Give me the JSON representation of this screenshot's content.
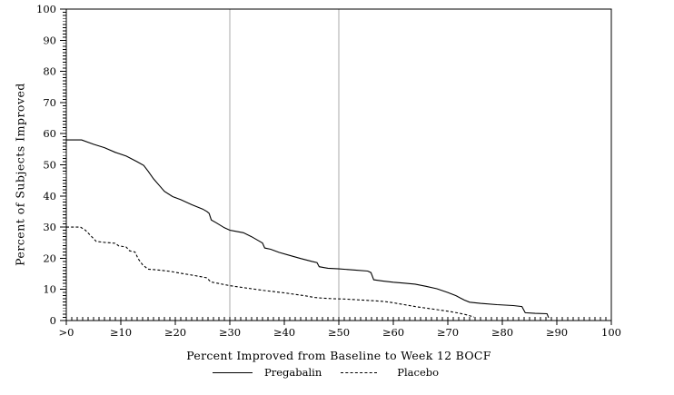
{
  "chart_data": {
    "type": "line",
    "title": "",
    "xlabel": "Percent Improved from Baseline to Week 12 BOCF",
    "ylabel": "Percent of Subjects Improved",
    "xlim": [
      0,
      100
    ],
    "ylim": [
      0,
      100
    ],
    "grid": false,
    "frame": true,
    "minor_tick_step": 1,
    "x_ticks": [
      {
        "v": 0,
        "label": ">0"
      },
      {
        "v": 10,
        "label": "≥10"
      },
      {
        "v": 20,
        "label": "≥20"
      },
      {
        "v": 30,
        "label": "≥30"
      },
      {
        "v": 40,
        "label": "≥40"
      },
      {
        "v": 50,
        "label": "≥50"
      },
      {
        "v": 60,
        "label": "≥60"
      },
      {
        "v": 70,
        "label": "≥70"
      },
      {
        "v": 80,
        "label": "≥80"
      },
      {
        "v": 90,
        "label": "≥90"
      },
      {
        "v": 100,
        "label": "100"
      }
    ],
    "y_ticks": [
      {
        "v": 0,
        "label": "0"
      },
      {
        "v": 10,
        "label": "10"
      },
      {
        "v": 20,
        "label": "20"
      },
      {
        "v": 30,
        "label": "30"
      },
      {
        "v": 40,
        "label": "40"
      },
      {
        "v": 50,
        "label": "50"
      },
      {
        "v": 60,
        "label": "60"
      },
      {
        "v": 70,
        "label": "70"
      },
      {
        "v": 80,
        "label": "80"
      },
      {
        "v": 90,
        "label": "90"
      },
      {
        "v": 100,
        "label": "100"
      }
    ],
    "reference_lines_x": [
      30,
      50
    ],
    "colors": {
      "series": "#000000",
      "frame": "#000000",
      "reference_line": "#a8a8a8",
      "background": "#ffffff"
    },
    "legend": {
      "position": "bottom",
      "entries": [
        {
          "name": "Pregabalin",
          "style": "solid"
        },
        {
          "name": "Placebo",
          "style": "dashed"
        }
      ]
    },
    "series": [
      {
        "name": "Pregabalin",
        "style": "solid",
        "points": [
          [
            0,
            58
          ],
          [
            2.8,
            58
          ],
          [
            5,
            56.6
          ],
          [
            7,
            55.5
          ],
          [
            9,
            54
          ],
          [
            11,
            52.8
          ],
          [
            13,
            51
          ],
          [
            14.2,
            49.8
          ],
          [
            15,
            48
          ],
          [
            16,
            45.5
          ],
          [
            17,
            43.5
          ],
          [
            18,
            41.5
          ],
          [
            19.5,
            39.8
          ],
          [
            21,
            38.8
          ],
          [
            23,
            37.2
          ],
          [
            25,
            35.8
          ],
          [
            25.8,
            35
          ],
          [
            26.2,
            34.4
          ],
          [
            26.6,
            32.3
          ],
          [
            27.5,
            31.4
          ],
          [
            29,
            29.8
          ],
          [
            30,
            29
          ],
          [
            31.5,
            28.5
          ],
          [
            32.5,
            28.2
          ],
          [
            34,
            26.9
          ],
          [
            35.3,
            25.6
          ],
          [
            36,
            24.9
          ],
          [
            36.4,
            23.3
          ],
          [
            37.5,
            22.9
          ],
          [
            39,
            21.9
          ],
          [
            41,
            20.9
          ],
          [
            43,
            19.9
          ],
          [
            45,
            19
          ],
          [
            46,
            18.6
          ],
          [
            46.4,
            17.3
          ],
          [
            48,
            16.8
          ],
          [
            50,
            16.6
          ],
          [
            53,
            16.2
          ],
          [
            55.3,
            15.9
          ],
          [
            55.9,
            15.4
          ],
          [
            56.4,
            13.1
          ],
          [
            58,
            12.7
          ],
          [
            60,
            12.3
          ],
          [
            62,
            12
          ],
          [
            64,
            11.7
          ],
          [
            66,
            11
          ],
          [
            68,
            10.2
          ],
          [
            70,
            9
          ],
          [
            71.5,
            8
          ],
          [
            73,
            6.6
          ],
          [
            74,
            5.9
          ],
          [
            76,
            5.5
          ],
          [
            79,
            5.1
          ],
          [
            82,
            4.8
          ],
          [
            83.6,
            4.5
          ],
          [
            84.2,
            2.5
          ],
          [
            86,
            2.3
          ],
          [
            88.2,
            2.2
          ],
          [
            88.5,
            0.9
          ]
        ]
      },
      {
        "name": "Placebo",
        "style": "dashed",
        "points": [
          [
            0,
            30
          ],
          [
            2.6,
            30
          ],
          [
            3.5,
            29
          ],
          [
            4.5,
            27.2
          ],
          [
            5.5,
            25.4
          ],
          [
            7,
            25.1
          ],
          [
            9,
            24.8
          ],
          [
            9.6,
            24
          ],
          [
            11,
            23.6
          ],
          [
            11.6,
            22.4
          ],
          [
            12.6,
            22
          ],
          [
            13.2,
            19.8
          ],
          [
            14,
            17.9
          ],
          [
            15,
            16.5
          ],
          [
            17,
            16.2
          ],
          [
            19,
            15.8
          ],
          [
            21,
            15.2
          ],
          [
            23,
            14.6
          ],
          [
            25,
            14
          ],
          [
            25.8,
            13.7
          ],
          [
            26.5,
            12.4
          ],
          [
            28,
            11.9
          ],
          [
            30,
            11.2
          ],
          [
            32,
            10.7
          ],
          [
            34,
            10.2
          ],
          [
            36,
            9.7
          ],
          [
            38,
            9.3
          ],
          [
            40,
            8.9
          ],
          [
            42,
            8.4
          ],
          [
            44,
            7.9
          ],
          [
            45.5,
            7.4
          ],
          [
            47,
            7.2
          ],
          [
            49,
            7
          ],
          [
            51,
            6.9
          ],
          [
            53,
            6.7
          ],
          [
            55,
            6.5
          ],
          [
            57,
            6.3
          ],
          [
            58.5,
            6.1
          ],
          [
            60,
            5.7
          ],
          [
            62,
            5.1
          ],
          [
            64,
            4.5
          ],
          [
            66,
            4
          ],
          [
            68,
            3.5
          ],
          [
            70,
            3
          ],
          [
            72,
            2.4
          ],
          [
            73.5,
            1.8
          ],
          [
            74.8,
            1.1
          ]
        ]
      }
    ]
  }
}
